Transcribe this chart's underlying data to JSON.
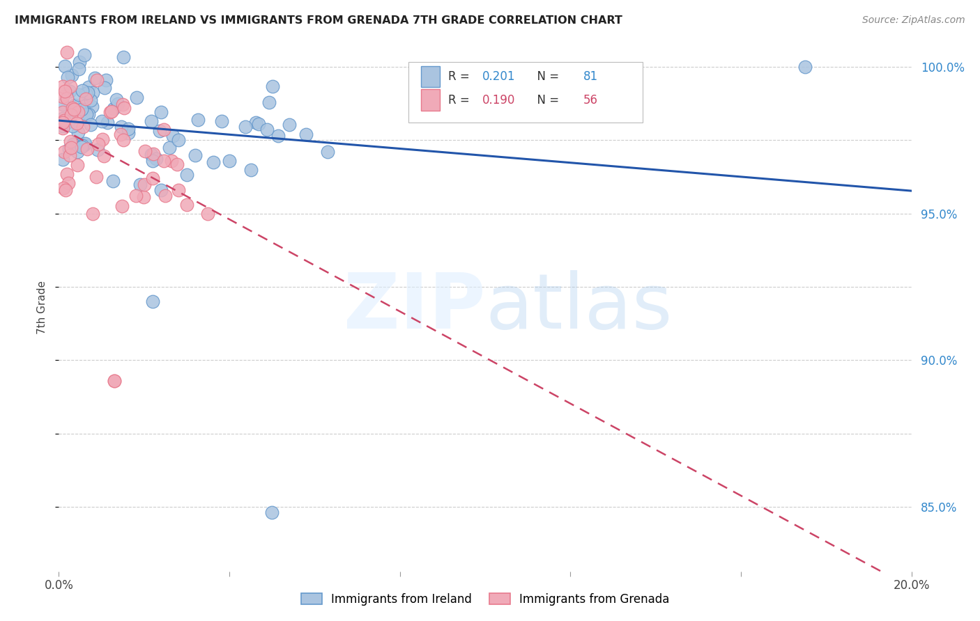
{
  "title": "IMMIGRANTS FROM IRELAND VS IMMIGRANTS FROM GRENADA 7TH GRADE CORRELATION CHART",
  "source": "Source: ZipAtlas.com",
  "ylabel": "7th Grade",
  "xmin": 0.0,
  "xmax": 0.2,
  "ymin": 0.828,
  "ymax": 1.008,
  "ireland_R": 0.201,
  "ireland_N": 81,
  "grenada_R": 0.19,
  "grenada_N": 56,
  "ireland_color": "#6699cc",
  "grenada_color": "#e87a8d",
  "ireland_color_fill": "#aac4e0",
  "grenada_color_fill": "#f0aab8",
  "trendline_ireland_color": "#2255aa",
  "trendline_grenada_color": "#cc4466",
  "grid_color": "#cccccc",
  "background_color": "#ffffff",
  "yticks": [
    0.85,
    0.9,
    0.95,
    1.0
  ],
  "ytick_labels": [
    "85.0%",
    "90.0%",
    "95.0%",
    "100.0%"
  ],
  "xtick_labels_show": [
    "0.0%",
    "20.0%"
  ]
}
